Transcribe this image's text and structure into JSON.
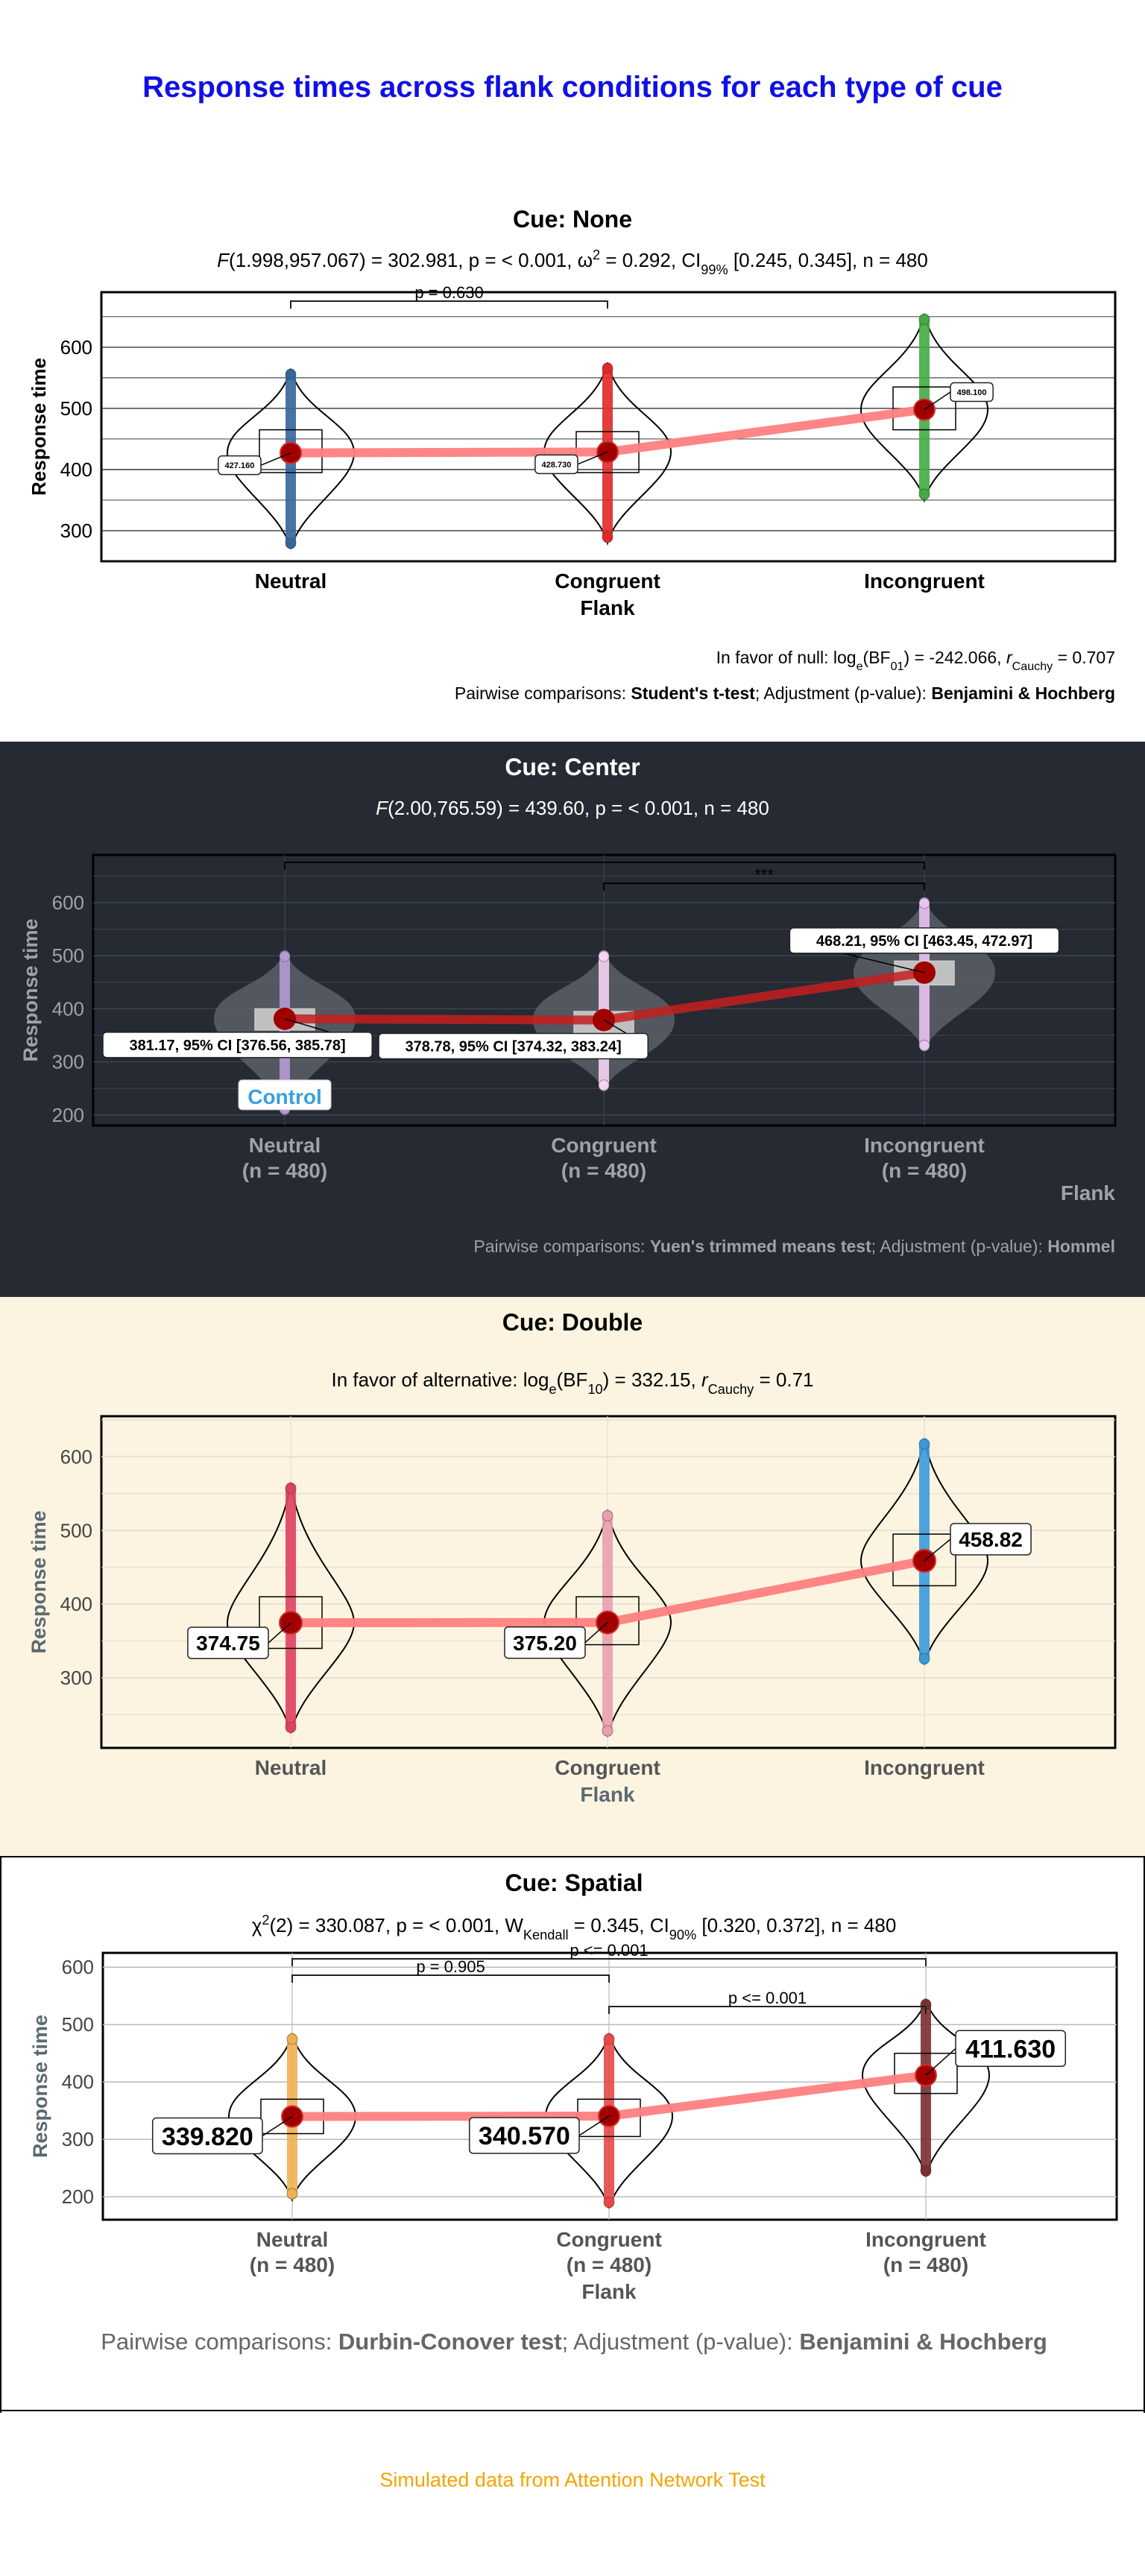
{
  "title": "Response times across flank conditions for each type of cue",
  "caption": "Simulated data from Attention Network Test",
  "colors": {
    "title": "#1010e6",
    "caption": "#f5a300",
    "trend": "#ff7f7f",
    "mean_point": "#a00000"
  },
  "chart_data": [
    {
      "type": "violin",
      "panel_title": "Cue: None",
      "subtitle": {
        "pre": "F(1.998,957.067) = 302.981, p = < 0.001, ω",
        "sup": "2",
        "mid": " = 0.292, CI",
        "sub": "99%",
        "post": " [0.245, 0.345], n = 480"
      },
      "xlabel": "Flank",
      "ylabel": "Response time",
      "ylim": [
        250,
        690
      ],
      "yticks": [
        300,
        400,
        500,
        600
      ],
      "categories": [
        "Neutral",
        "Congruent",
        "Incongruent"
      ],
      "category_labels": [
        [
          "Neutral"
        ],
        [
          "Congruent"
        ],
        [
          "Incongruent"
        ]
      ],
      "series_colors": [
        "#336699",
        "#e02828",
        "#44aa44"
      ],
      "means": [
        427.16,
        428.73,
        498.1
      ],
      "quartiles": [
        [
          395,
          465
        ],
        [
          395,
          462
        ],
        [
          465,
          535
        ]
      ],
      "ranges": [
        [
          270,
          565
        ],
        [
          280,
          575
        ],
        [
          350,
          655
        ]
      ],
      "mean_labels": [
        "427.160",
        "428.730",
        "498.100"
      ],
      "comparisons": [
        {
          "from": 0,
          "to": 1,
          "label": "p = 0.630"
        }
      ],
      "footnotes": [
        {
          "pre": "In favor of null: log",
          "sub": "e",
          "mid": "(BF",
          "sub2": "01",
          "post": ") = -242.066, ",
          "ital": "r",
          "sub3": "Cauchy",
          "tail": " = 0.707"
        },
        {
          "pre": "Pairwise comparisons: ",
          "b1": "Student's t-test",
          "mid": "; Adjustment (p-value): ",
          "b2": "Benjamini & Hochberg"
        }
      ]
    },
    {
      "type": "violin",
      "panel_title": "Cue: Center",
      "subtitle": {
        "pre": "F(2.00,765.59) = 439.60, p = < 0.001, n = 480"
      },
      "xlabel": "Flank",
      "ylabel": "Response time",
      "ylim": [
        180,
        690
      ],
      "yticks": [
        200,
        300,
        400,
        500,
        600
      ],
      "categories": [
        "Neutral",
        "Congruent",
        "Incongruent"
      ],
      "category_labels": [
        [
          "Neutral",
          "(n = 480)"
        ],
        [
          "Congruent",
          "(n = 480)"
        ],
        [
          "Incongruent",
          "(n = 480)"
        ]
      ],
      "series_colors": [
        "#b59ad6",
        "#f7d4f2",
        "#e8c4f0"
      ],
      "means": [
        381.17,
        378.78,
        468.21
      ],
      "quartiles": [
        [
          360,
          400
        ],
        [
          355,
          395
        ],
        [
          445,
          490
        ]
      ],
      "ranges": [
        [
          200,
          510
        ],
        [
          245,
          510
        ],
        [
          320,
          610
        ]
      ],
      "mean_labels": [
        "381.17, 95% CI [376.56, 385.78]",
        "378.78, 95% CI [374.32, 383.24]",
        "468.21, 95% CI [463.45, 472.97]"
      ],
      "comparisons": [
        {
          "from": 0,
          "to": 2,
          "label": ""
        },
        {
          "from": 1,
          "to": 2,
          "label": "***"
        }
      ],
      "annotation": "Control",
      "footnotes": [
        {
          "pre": "Pairwise comparisons: ",
          "b1": "Yuen's trimmed means test",
          "mid": "; Adjustment (p-value): ",
          "b2": "Hommel"
        }
      ]
    },
    {
      "type": "violin",
      "panel_title": "Cue: Double",
      "subtitle": {
        "pre": "In favor of alternative: log",
        "sub": "e",
        "mid": "(BF",
        "sub2": "10",
        "post": ") = 332.15, ",
        "ital": "r",
        "sub3": "Cauchy",
        "tail": " = 0.71"
      },
      "xlabel": "Flank",
      "ylabel": "Response time",
      "ylim": [
        205,
        655
      ],
      "yticks": [
        300,
        400,
        500,
        600
      ],
      "categories": [
        "Neutral",
        "Congruent",
        "Incongruent"
      ],
      "category_labels": [
        [
          "Neutral"
        ],
        [
          "Congruent"
        ],
        [
          "Incongruent"
        ]
      ],
      "series_colors": [
        "#e04060",
        "#e8a0b0",
        "#3a9ad9"
      ],
      "means": [
        374.75,
        375.2,
        458.82
      ],
      "quartiles": [
        [
          340,
          410
        ],
        [
          345,
          410
        ],
        [
          425,
          495
        ]
      ],
      "ranges": [
        [
          225,
          565
        ],
        [
          220,
          528
        ],
        [
          318,
          625
        ]
      ],
      "mean_labels": [
        "374.75",
        "375.20",
        "458.82"
      ],
      "comparisons": [],
      "footnotes": []
    },
    {
      "type": "violin",
      "panel_title": "Cue: Spatial",
      "subtitle": {
        "pre": "χ",
        "sup": "2",
        "mid": "(2) = 330.087, p = < 0.001, W",
        "sub": "Kendall",
        "post": " = 0.345, CI",
        "sub2": "90%",
        "tail": " [0.320, 0.372], n = 480"
      },
      "xlabel": "Flank",
      "ylabel": "Response time",
      "ylim": [
        160,
        625
      ],
      "yticks": [
        200,
        300,
        400,
        500,
        600
      ],
      "categories": [
        "Neutral",
        "Congruent",
        "Incongruent"
      ],
      "category_labels": [
        [
          "Neutral",
          "(n = 480)"
        ],
        [
          "Congruent",
          "(n = 480)"
        ],
        [
          "Incongruent",
          "(n = 480)"
        ]
      ],
      "series_colors": [
        "#f0b050",
        "#e84848",
        "#7a2e2e"
      ],
      "means": [
        339.82,
        340.57,
        411.63
      ],
      "quartiles": [
        [
          310,
          370
        ],
        [
          305,
          370
        ],
        [
          380,
          450
        ]
      ],
      "ranges": [
        [
          195,
          485
        ],
        [
          180,
          485
        ],
        [
          235,
          545
        ]
      ],
      "mean_labels": [
        "339.820",
        "340.570",
        "411.630"
      ],
      "comparisons": [
        {
          "from": 0,
          "to": 2,
          "label": "p <= 0.001"
        },
        {
          "from": 0,
          "to": 1,
          "label": "p = 0.905"
        },
        {
          "from": 1,
          "to": 2,
          "label": "p <= 0.001"
        }
      ],
      "footnotes": [
        {
          "pre": "Pairwise comparisons: ",
          "b1": "Durbin-Conover test",
          "mid": "; Adjustment (p-value): ",
          "b2": "Benjamini & Hochberg"
        }
      ]
    }
  ]
}
